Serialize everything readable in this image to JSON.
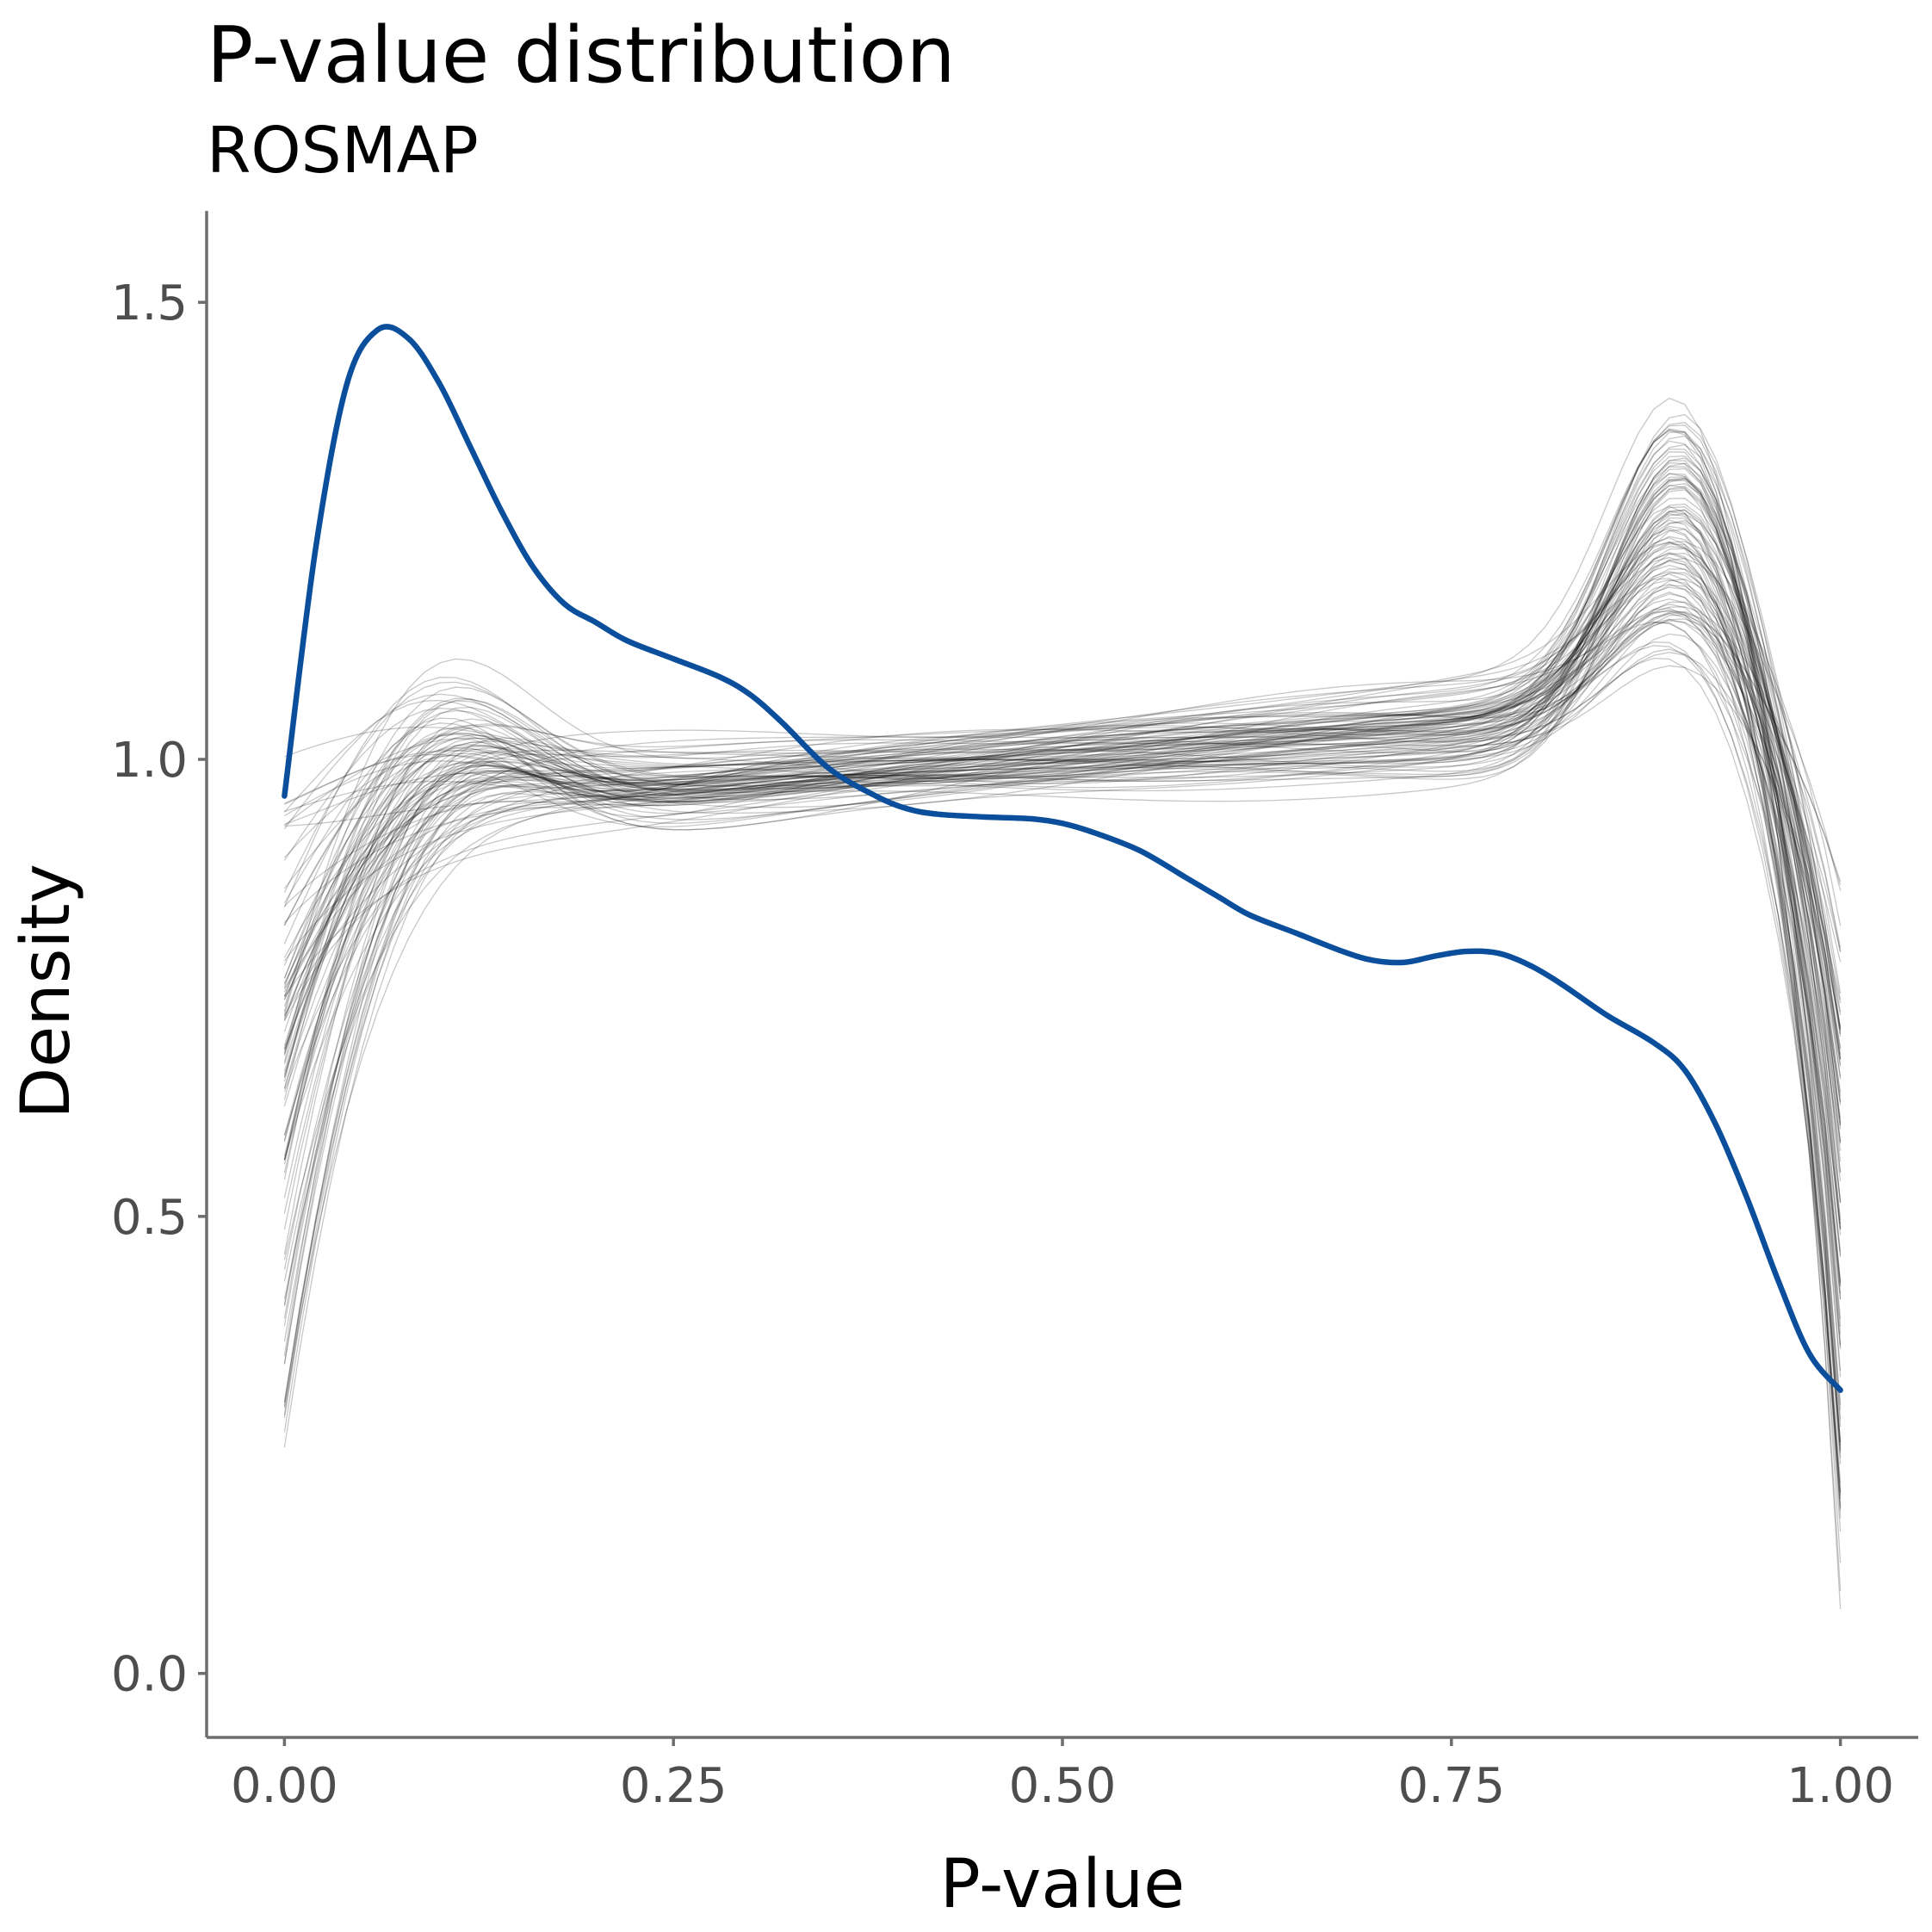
{
  "chart_data": {
    "type": "line",
    "title": "P-value distribution",
    "subtitle": "ROSMAP",
    "xlabel": "P-value",
    "ylabel": "Density",
    "xlim": [
      -0.05,
      1.05
    ],
    "ylim": [
      -0.07,
      1.6
    ],
    "x_ticks": [
      0,
      0.25,
      0.5,
      0.75,
      1
    ],
    "x_tick_labels": [
      "0.00",
      "0.25",
      "0.50",
      "0.75",
      "1.00"
    ],
    "y_ticks": [
      0,
      0.5,
      1,
      1.5
    ],
    "y_tick_labels": [
      "0.0",
      "0.5",
      "1.0",
      "1.5"
    ],
    "grid": false,
    "legend": "none",
    "colors": {
      "observed": "#0B4F9C",
      "null": "#000000"
    },
    "observed_series": {
      "x": [
        0,
        0.02,
        0.04,
        0.06,
        0.08,
        0.1,
        0.12,
        0.14,
        0.16,
        0.18,
        0.2,
        0.22,
        0.25,
        0.28,
        0.3,
        0.32,
        0.35,
        0.38,
        0.4,
        0.42,
        0.45,
        0.48,
        0.5,
        0.52,
        0.55,
        0.58,
        0.6,
        0.62,
        0.65,
        0.68,
        0.7,
        0.72,
        0.74,
        0.76,
        0.78,
        0.8,
        0.82,
        0.85,
        0.88,
        0.9,
        0.92,
        0.94,
        0.96,
        0.98,
        1.0
      ],
      "y": [
        0.96,
        1.23,
        1.41,
        1.47,
        1.46,
        1.41,
        1.34,
        1.27,
        1.21,
        1.17,
        1.15,
        1.13,
        1.11,
        1.09,
        1.07,
        1.04,
        0.99,
        0.96,
        0.946,
        0.94,
        0.937,
        0.935,
        0.93,
        0.92,
        0.9,
        0.87,
        0.85,
        0.83,
        0.81,
        0.79,
        0.78,
        0.778,
        0.785,
        0.79,
        0.788,
        0.775,
        0.755,
        0.72,
        0.69,
        0.66,
        0.6,
        0.52,
        0.43,
        0.35,
        0.31
      ]
    },
    "null_series_count": 100
  }
}
